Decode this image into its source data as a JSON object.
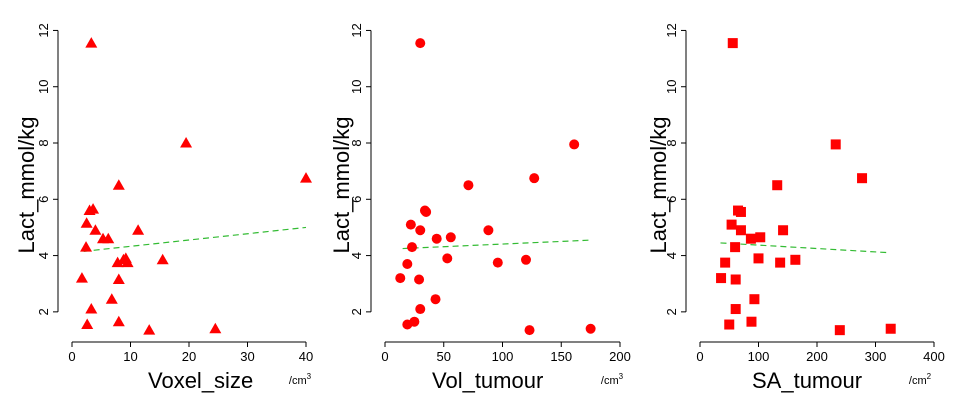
{
  "chart_data": [
    {
      "type": "scatter",
      "marker": "triangle",
      "marker_color": "#ff0000",
      "fit_color": "#33bb33",
      "xlabel": "Voxel_size",
      "xunit": "/cm",
      "xunit_sup": "3",
      "ylabel": "Lact_mmol/kg",
      "xlim": [
        0,
        40
      ],
      "ylim": [
        1,
        12.3
      ],
      "xticks": [
        0,
        10,
        20,
        30,
        40
      ],
      "yticks": [
        2,
        4,
        6,
        8,
        10,
        12
      ],
      "points": [
        {
          "x": 3.3,
          "y": 11.55
        },
        {
          "x": 19.5,
          "y": 8.0
        },
        {
          "x": 40.0,
          "y": 6.75
        },
        {
          "x": 8.0,
          "y": 6.5
        },
        {
          "x": 3.0,
          "y": 5.6
        },
        {
          "x": 3.6,
          "y": 5.65
        },
        {
          "x": 2.5,
          "y": 5.15
        },
        {
          "x": 4.0,
          "y": 4.9
        },
        {
          "x": 11.3,
          "y": 4.9
        },
        {
          "x": 6.2,
          "y": 4.6
        },
        {
          "x": 5.3,
          "y": 4.6
        },
        {
          "x": 2.4,
          "y": 4.3
        },
        {
          "x": 9.2,
          "y": 3.9
        },
        {
          "x": 8.8,
          "y": 3.85
        },
        {
          "x": 15.5,
          "y": 3.85
        },
        {
          "x": 7.8,
          "y": 3.75
        },
        {
          "x": 9.5,
          "y": 3.75
        },
        {
          "x": 1.7,
          "y": 3.2
        },
        {
          "x": 8.0,
          "y": 3.15
        },
        {
          "x": 6.8,
          "y": 2.45
        },
        {
          "x": 3.3,
          "y": 2.1
        },
        {
          "x": 8.0,
          "y": 1.65
        },
        {
          "x": 2.6,
          "y": 1.55
        },
        {
          "x": 24.5,
          "y": 1.4
        },
        {
          "x": 13.2,
          "y": 1.35
        }
      ],
      "fit": {
        "x": [
          2,
          40
        ],
        "y": [
          4.15,
          5.0
        ]
      }
    },
    {
      "type": "scatter",
      "marker": "circle",
      "marker_color": "#ff0000",
      "fit_color": "#33bb33",
      "xlabel": "Vol_tumour",
      "xunit": "/cm",
      "xunit_sup": "3",
      "ylabel": "Lact_mmol/kg",
      "xlim": [
        0,
        200
      ],
      "ylim": [
        1,
        12.3
      ],
      "xticks": [
        0,
        50,
        100,
        150,
        200
      ],
      "yticks": [
        2,
        4,
        6,
        8,
        10,
        12
      ],
      "points": [
        {
          "x": 30,
          "y": 11.55
        },
        {
          "x": 161,
          "y": 7.95
        },
        {
          "x": 127,
          "y": 6.75
        },
        {
          "x": 71,
          "y": 6.5
        },
        {
          "x": 34,
          "y": 5.6
        },
        {
          "x": 35,
          "y": 5.55
        },
        {
          "x": 22,
          "y": 5.1
        },
        {
          "x": 30,
          "y": 4.9
        },
        {
          "x": 88,
          "y": 4.9
        },
        {
          "x": 56,
          "y": 4.65
        },
        {
          "x": 44,
          "y": 4.6
        },
        {
          "x": 23,
          "y": 4.3
        },
        {
          "x": 53,
          "y": 3.9
        },
        {
          "x": 120,
          "y": 3.85
        },
        {
          "x": 96,
          "y": 3.75
        },
        {
          "x": 19,
          "y": 3.7
        },
        {
          "x": 13,
          "y": 3.2
        },
        {
          "x": 29,
          "y": 3.15
        },
        {
          "x": 43,
          "y": 2.45
        },
        {
          "x": 30,
          "y": 2.1
        },
        {
          "x": 25,
          "y": 1.65
        },
        {
          "x": 19,
          "y": 1.55
        },
        {
          "x": 175,
          "y": 1.4
        },
        {
          "x": 123,
          "y": 1.35
        }
      ],
      "fit": {
        "x": [
          15,
          175
        ],
        "y": [
          4.25,
          4.55
        ]
      }
    },
    {
      "type": "scatter",
      "marker": "square",
      "marker_color": "#ff0000",
      "fit_color": "#33bb33",
      "xlabel": "SA_tumour",
      "xunit": "/cm",
      "xunit_sup": "2",
      "ylabel": "Lact_mmol/kg",
      "xlim": [
        0,
        400
      ],
      "ylim": [
        1,
        12.3
      ],
      "xticks": [
        0,
        100,
        200,
        300,
        400
      ],
      "yticks": [
        2,
        4,
        6,
        8,
        10,
        12
      ],
      "points": [
        {
          "x": 56,
          "y": 11.55
        },
        {
          "x": 232,
          "y": 7.95
        },
        {
          "x": 277,
          "y": 6.75
        },
        {
          "x": 132,
          "y": 6.5
        },
        {
          "x": 65,
          "y": 5.6
        },
        {
          "x": 70,
          "y": 5.55
        },
        {
          "x": 54,
          "y": 5.1
        },
        {
          "x": 70,
          "y": 4.9
        },
        {
          "x": 142,
          "y": 4.9
        },
        {
          "x": 103,
          "y": 4.65
        },
        {
          "x": 87,
          "y": 4.6
        },
        {
          "x": 60,
          "y": 4.3
        },
        {
          "x": 100,
          "y": 3.9
        },
        {
          "x": 163,
          "y": 3.85
        },
        {
          "x": 137,
          "y": 3.75
        },
        {
          "x": 43,
          "y": 3.75
        },
        {
          "x": 36,
          "y": 3.2
        },
        {
          "x": 61,
          "y": 3.15
        },
        {
          "x": 93,
          "y": 2.45
        },
        {
          "x": 61,
          "y": 2.1
        },
        {
          "x": 88,
          "y": 1.65
        },
        {
          "x": 50,
          "y": 1.55
        },
        {
          "x": 326,
          "y": 1.4
        },
        {
          "x": 239,
          "y": 1.35
        }
      ],
      "fit": {
        "x": [
          35,
          325
        ],
        "y": [
          4.45,
          4.1
        ]
      }
    }
  ]
}
